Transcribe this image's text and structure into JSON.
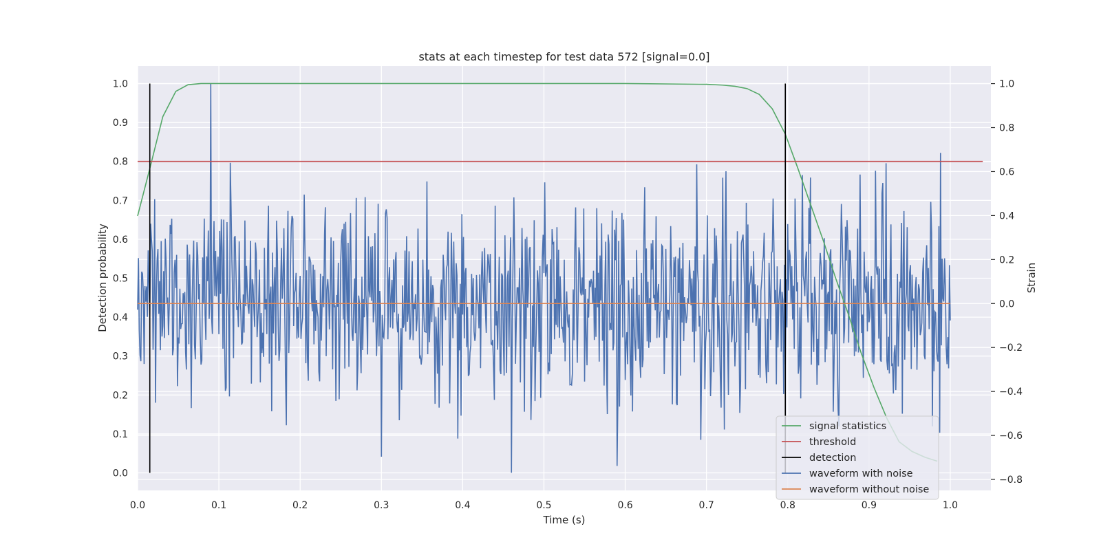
{
  "chart_data": {
    "type": "line",
    "title": "stats at each timestep for test data 572 [signal=0.0]",
    "xlabel": "Time (s)",
    "ylabel": "Detection probability",
    "y2label": "Strain",
    "xlim": [
      0.0,
      1.05
    ],
    "ylim": [
      -0.045,
      1.045
    ],
    "y2lim": [
      -0.85,
      1.08
    ],
    "x_ticks": [
      "0.0",
      "0.1",
      "0.2",
      "0.3",
      "0.4",
      "0.5",
      "0.6",
      "0.7",
      "0.8",
      "0.9",
      "1.0"
    ],
    "y_ticks": [
      "0.0",
      "0.1",
      "0.2",
      "0.3",
      "0.4",
      "0.5",
      "0.6",
      "0.7",
      "0.8",
      "0.9",
      "1.0"
    ],
    "y2_ticks": [
      "−0.8",
      "−0.6",
      "−0.4",
      "−0.2",
      "0.0",
      "0.2",
      "0.4",
      "0.6",
      "0.8",
      "1.0"
    ],
    "grid": true,
    "legend_position": "lower-right",
    "series": [
      {
        "name": "signal statistics",
        "color": "#55a868",
        "axis": "left",
        "x": [
          0.0,
          0.016,
          0.031,
          0.047,
          0.062,
          0.078,
          0.1,
          0.2,
          0.3,
          0.4,
          0.5,
          0.6,
          0.7,
          0.72,
          0.735,
          0.75,
          0.765,
          0.781,
          0.797,
          0.812,
          0.828,
          0.844,
          0.859,
          0.875,
          0.89,
          0.906,
          0.922,
          0.937,
          0.953,
          0.969,
          0.984
        ],
        "y": [
          0.66,
          0.79,
          0.915,
          0.98,
          0.997,
          1.0,
          1.0,
          1.0,
          1.0,
          1.0,
          1.0,
          1.0,
          0.998,
          0.996,
          0.993,
          0.987,
          0.972,
          0.935,
          0.87,
          0.785,
          0.69,
          0.595,
          0.5,
          0.405,
          0.31,
          0.22,
          0.14,
          0.08,
          0.055,
          0.04,
          0.03
        ]
      },
      {
        "name": "threshold",
        "color": "#c44e52",
        "axis": "left",
        "x": [
          0.0,
          1.04
        ],
        "y": [
          0.8,
          0.8
        ]
      },
      {
        "name": "detection",
        "color": "#000000",
        "axis": "left",
        "type": "vlines",
        "x": [
          0.015,
          0.797
        ],
        "ymin": 0.0,
        "ymax": 1.0
      },
      {
        "name": "waveform with noise",
        "color": "#4c72b0",
        "axis": "right",
        "type": "noise",
        "x_range": [
          0.0,
          1.0
        ],
        "n_points": 1001,
        "center": 0.0,
        "min": -0.77,
        "max": 1.0
      },
      {
        "name": "waveform without noise",
        "color": "#dd8452",
        "axis": "right",
        "x": [
          0.0,
          1.0
        ],
        "y": [
          0.0,
          0.0
        ]
      }
    ]
  }
}
